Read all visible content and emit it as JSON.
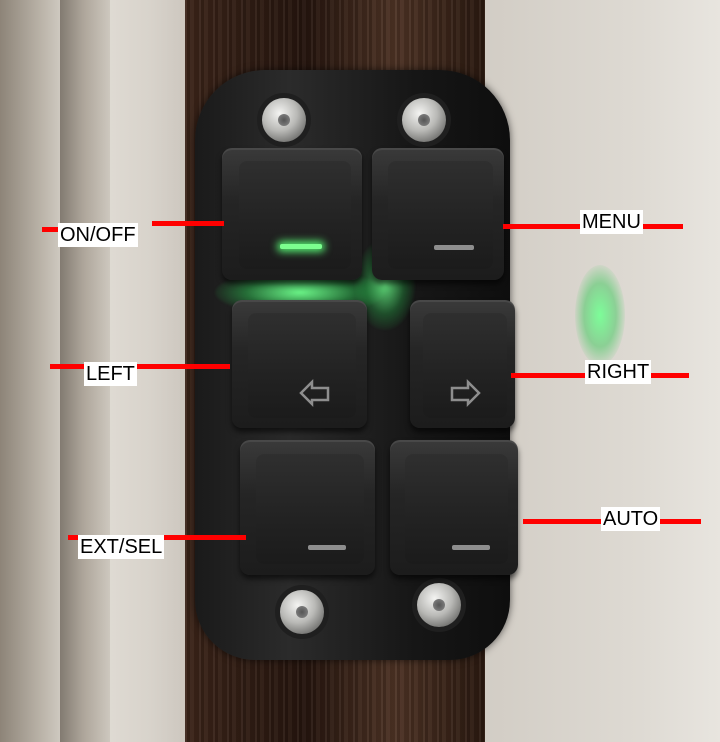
{
  "labels": {
    "on_off": "ON/OFF",
    "menu": "MENU",
    "left": "LEFT",
    "right": "RIGHT",
    "ext_sel": "EXT/SEL",
    "auto": "AUTO"
  },
  "colors": {
    "annotation_line": "#ff0000",
    "led_glow": "#7cff8f",
    "label_bg": "#ffffff"
  },
  "icons": {
    "left_key_glyph": "arrow-left-icon",
    "right_key_glyph": "arrow-right-icon"
  }
}
